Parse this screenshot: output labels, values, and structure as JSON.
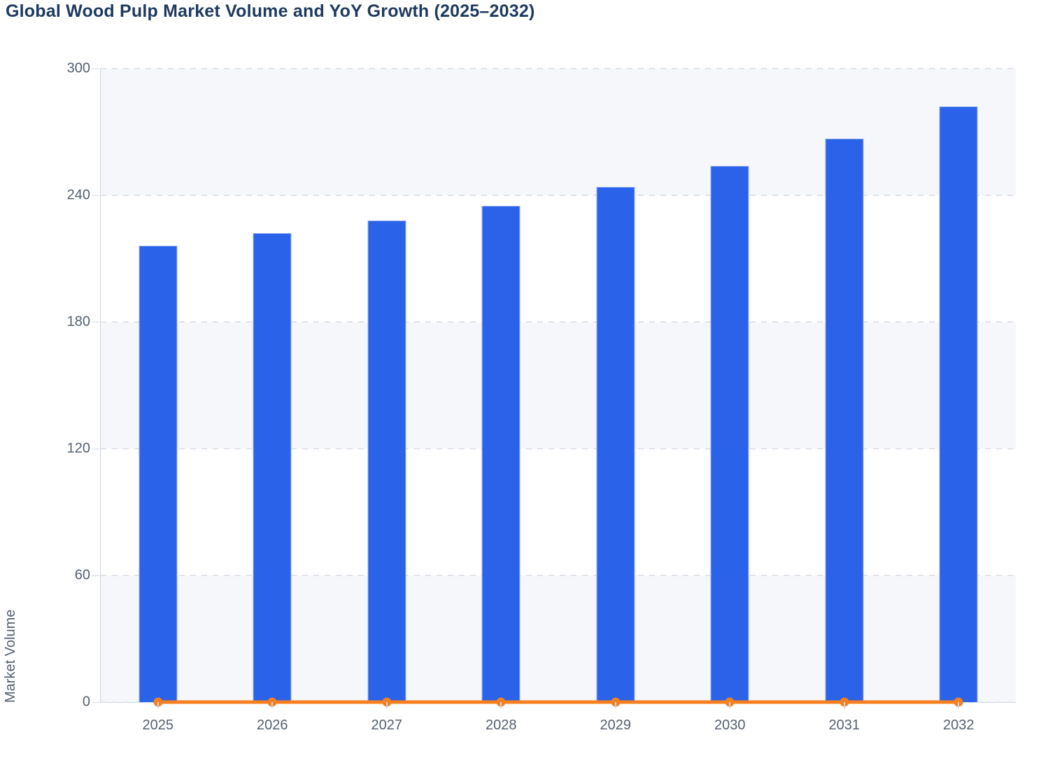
{
  "title": "Global Wood Pulp Market Volume and YoY Growth (2025–2032)",
  "y_axis_title": "Market Volume",
  "colors": {
    "bar": "#2a62e9",
    "bar_border": "#9db3f0",
    "line": "#f5801f",
    "title_text": "#1e3a5f",
    "axis_text": "#556070",
    "axis_line": "#ccd4ef",
    "tick": "#d6dae1",
    "grid": "#e0e3e9",
    "band": "#f5f7fa"
  },
  "chart_data": {
    "type": "bar",
    "title": "Global Wood Pulp Market Volume and YoY Growth (2025–2032)",
    "xlabel": "",
    "ylabel": "Market Volume",
    "categories": [
      "2025",
      "2026",
      "2027",
      "2028",
      "2029",
      "2030",
      "2031",
      "2032"
    ],
    "series": [
      {
        "name": "Market Volume",
        "type": "bar",
        "color": "#2a62e9",
        "values": [
          216,
          222,
          228,
          235,
          244,
          254,
          267,
          282
        ]
      },
      {
        "name": "YoY Growth",
        "type": "line",
        "color": "#f5801f",
        "values": [
          0,
          0,
          0,
          0,
          0,
          0,
          0,
          0
        ]
      }
    ],
    "ylim": [
      0,
      300
    ],
    "yticks": [
      0,
      60,
      120,
      180,
      240,
      300
    ],
    "grid": true,
    "legend_position": "none"
  }
}
